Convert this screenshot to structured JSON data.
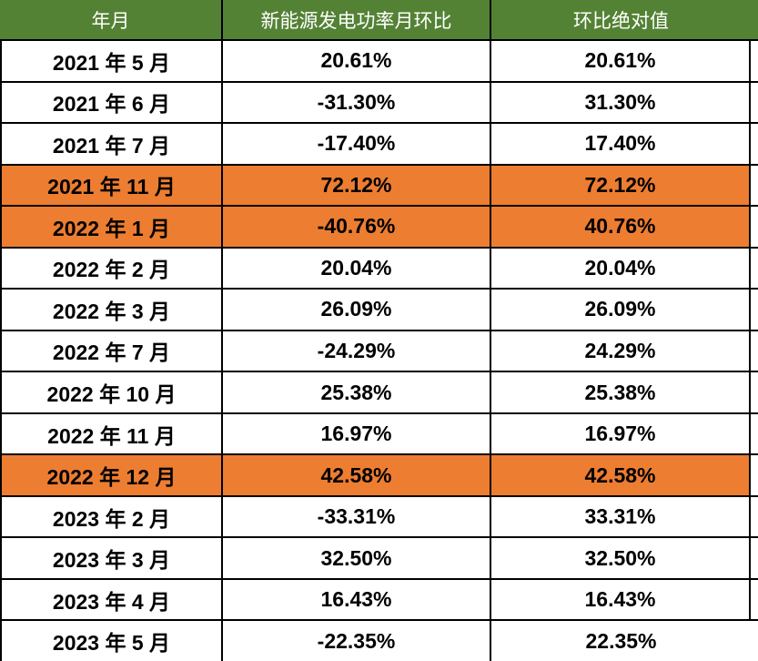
{
  "colors": {
    "header_bg": "#548235",
    "header_text": "#FFFFFF",
    "highlight_bg": "#ED7D31",
    "row_bg": "#FFFFFF",
    "body_text": "#000000",
    "border": "#000000"
  },
  "chart_data": {
    "type": "table",
    "title": "",
    "columns": [
      "年月",
      "新能源发电功率月环比",
      "环比绝对值"
    ],
    "rows": [
      {
        "month": "2021 年 5 月",
        "mom_pct": "20.61%",
        "abs_pct": "20.61%",
        "highlight": false
      },
      {
        "month": "2021 年 6 月",
        "mom_pct": "-31.30%",
        "abs_pct": "31.30%",
        "highlight": false
      },
      {
        "month": "2021 年 7 月",
        "mom_pct": "-17.40%",
        "abs_pct": "17.40%",
        "highlight": false
      },
      {
        "month": "2021 年 11 月",
        "mom_pct": "72.12%",
        "abs_pct": "72.12%",
        "highlight": true
      },
      {
        "month": "2022 年 1 月",
        "mom_pct": "-40.76%",
        "abs_pct": "40.76%",
        "highlight": true
      },
      {
        "month": "2022 年 2 月",
        "mom_pct": "20.04%",
        "abs_pct": "20.04%",
        "highlight": false
      },
      {
        "month": "2022 年 3 月",
        "mom_pct": "26.09%",
        "abs_pct": "26.09%",
        "highlight": false
      },
      {
        "month": "2022 年 7 月",
        "mom_pct": "-24.29%",
        "abs_pct": "24.29%",
        "highlight": false
      },
      {
        "month": "2022 年 10 月",
        "mom_pct": "25.38%",
        "abs_pct": "25.38%",
        "highlight": false
      },
      {
        "month": "2022 年 11 月",
        "mom_pct": "16.97%",
        "abs_pct": "16.97%",
        "highlight": false
      },
      {
        "month": "2022 年 12 月",
        "mom_pct": "42.58%",
        "abs_pct": "42.58%",
        "highlight": true
      },
      {
        "month": "2023 年 2 月",
        "mom_pct": "-33.31%",
        "abs_pct": "33.31%",
        "highlight": false
      },
      {
        "month": "2023 年 3 月",
        "mom_pct": "32.50%",
        "abs_pct": "32.50%",
        "highlight": false
      },
      {
        "month": "2023 年 4 月",
        "mom_pct": "16.43%",
        "abs_pct": "16.43%",
        "highlight": false
      },
      {
        "month": "2023 年 5 月",
        "mom_pct": "-22.35%",
        "abs_pct": "22.35%",
        "highlight": false
      }
    ],
    "mom_values_numeric": [
      20.61,
      -31.3,
      -17.4,
      72.12,
      -40.76,
      20.04,
      26.09,
      -24.29,
      25.38,
      16.97,
      42.58,
      -33.31,
      32.5,
      16.43,
      -22.35
    ],
    "abs_values_numeric": [
      20.61,
      31.3,
      17.4,
      72.12,
      40.76,
      20.04,
      26.09,
      24.29,
      25.38,
      16.97,
      42.58,
      33.31,
      32.5,
      16.43,
      22.35
    ],
    "highlighted_months": [
      "2021 年 11 月",
      "2022 年 1 月",
      "2022 年 12 月"
    ]
  }
}
